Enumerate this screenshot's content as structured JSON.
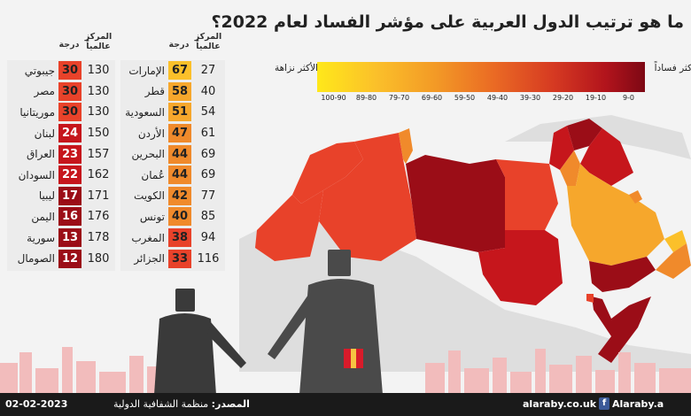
{
  "title": "ما هو ترتيب الدول العربية على مؤشر الفساد لعام 2022؟",
  "legend": {
    "most_corrupt": "الأكثر فساداً",
    "cleanest": "الأكثر نزاهة",
    "ranges": [
      "100-90",
      "89-80",
      "79-70",
      "69-60",
      "59-50",
      "49-40",
      "39-30",
      "29-20",
      "19-10",
      "9-0"
    ]
  },
  "table_headers": {
    "rank": "المركز عالمياً",
    "score": "درجة"
  },
  "score_colors": {
    "67": "#fbc02a",
    "50s": "#f6a72c",
    "40s": "#f08a2b",
    "30s": "#e8422a",
    "20s": "#c6161c",
    "10s": "#9b0d17"
  },
  "table_right": [
    {
      "name": "الإمارات",
      "score": "67",
      "rank": "27"
    },
    {
      "name": "قطر",
      "score": "58",
      "rank": "40"
    },
    {
      "name": "السعودية",
      "score": "51",
      "rank": "54"
    },
    {
      "name": "الأردن",
      "score": "47",
      "rank": "61"
    },
    {
      "name": "البحرين",
      "score": "44",
      "rank": "69"
    },
    {
      "name": "عُمان",
      "score": "44",
      "rank": "69"
    },
    {
      "name": "الكويت",
      "score": "42",
      "rank": "77"
    },
    {
      "name": "تونس",
      "score": "40",
      "rank": "85"
    },
    {
      "name": "المغرب",
      "score": "38",
      "rank": "94"
    },
    {
      "name": "الجزائر",
      "score": "33",
      "rank": "116"
    }
  ],
  "table_left": [
    {
      "name": "جيبوتي",
      "score": "30",
      "rank": "130"
    },
    {
      "name": "مصر",
      "score": "30",
      "rank": "130"
    },
    {
      "name": "موريتانيا",
      "score": "30",
      "rank": "130"
    },
    {
      "name": "لبنان",
      "score": "24",
      "rank": "150"
    },
    {
      "name": "العراق",
      "score": "23",
      "rank": "157"
    },
    {
      "name": "السودان",
      "score": "22",
      "rank": "162"
    },
    {
      "name": "ليبيا",
      "score": "17",
      "rank": "171"
    },
    {
      "name": "اليمن",
      "score": "16",
      "rank": "176"
    },
    {
      "name": "سورية",
      "score": "13",
      "rank": "178"
    },
    {
      "name": "الصومال",
      "score": "12",
      "rank": "180"
    }
  ],
  "footer": {
    "date": "02-02-2023",
    "source_label": "المصدر:",
    "source_value": "منظمة الشفافية الدولية",
    "site": "alaraby.co.uk",
    "facebook_icon": "facebook-icon",
    "facebook_name": "Alaraby.a"
  }
}
